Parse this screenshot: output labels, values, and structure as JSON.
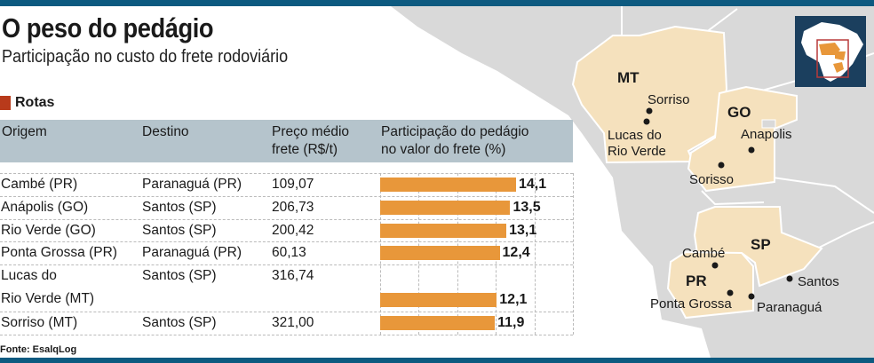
{
  "header": {
    "title": "O peso do pedágio",
    "subtitle": "Participação no custo do frete rodoviário",
    "section": "Rotas"
  },
  "table": {
    "headers": [
      "Origem",
      "Destino",
      "Preço médio\nfrete (R$/t)",
      "Participação do pedágio\nno valor do frete (%)"
    ]
  },
  "chart_data": {
    "type": "bar",
    "orientation": "horizontal",
    "xlim": [
      0,
      20
    ],
    "grid": true,
    "categories": [
      "Cambé (PR)",
      "Anápolis (GO)",
      "Rio Verde (GO)",
      "Ponta Grossa (PR)",
      "Lucas do\nRio Verde (MT)",
      "Sorriso (MT)"
    ],
    "destinations": [
      "Paranaguá (PR)",
      "Santos (SP)",
      "Santos (SP)",
      "Paranaguá (PR)",
      "Santos (SP)",
      "Santos (SP)"
    ],
    "prices": [
      "109,07",
      "206,73",
      "200,42",
      "60,13",
      "316,74",
      "321,00"
    ],
    "values": [
      14.1,
      13.5,
      13.1,
      12.4,
      12.1,
      11.9
    ],
    "value_labels": [
      "14,1",
      "13,5",
      "13,1",
      "12,4",
      "12,1",
      "11,9"
    ],
    "bar_color": "#e8973a"
  },
  "map": {
    "states": [
      "MT",
      "GO",
      "SP",
      "PR"
    ],
    "cities": [
      "Sorriso",
      "Lucas do Rio Verde",
      "Anapolis",
      "Sorisso",
      "Cambé",
      "Ponta Grossa",
      "Paranaguá",
      "Santos"
    ],
    "state_color": "#f5e1bd",
    "inset_bg": "#1b3f5e",
    "highlight_color": "#b83a3a"
  },
  "footer": {
    "source": "Fonte: EsalqLog"
  }
}
